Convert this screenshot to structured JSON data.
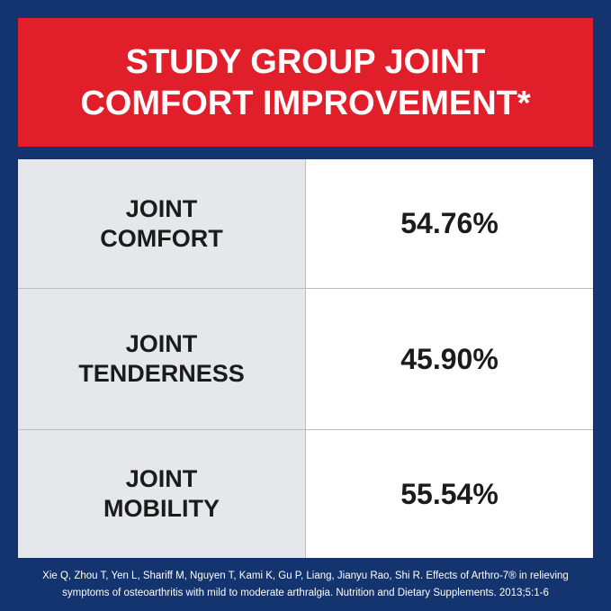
{
  "header": {
    "title_lines": [
      "STUDY GROUP JOINT",
      "COMFORT IMPROVEMENT*"
    ]
  },
  "table": {
    "rows": [
      {
        "label_lines": [
          "JOINT",
          "COMFORT"
        ],
        "value": "54.76%"
      },
      {
        "label_lines": [
          "JOINT",
          "TENDERNESS"
        ],
        "value": "45.90%"
      },
      {
        "label_lines": [
          "JOINT",
          "MOBILITY"
        ],
        "value": "55.54%"
      }
    ]
  },
  "footnote_lines": [
    "Xie Q, Zhou T, Yen L, Shariff M, Nguyen T, Kami K, Gu P, Liang, Jianyu Rao, Shi R. Effects of Arthro-7® in relieving",
    "symptoms of osteoarthritis with mild to moderate arthralgia. Nutrition and Dietary Supplements. 2013;5:1-6"
  ]
}
